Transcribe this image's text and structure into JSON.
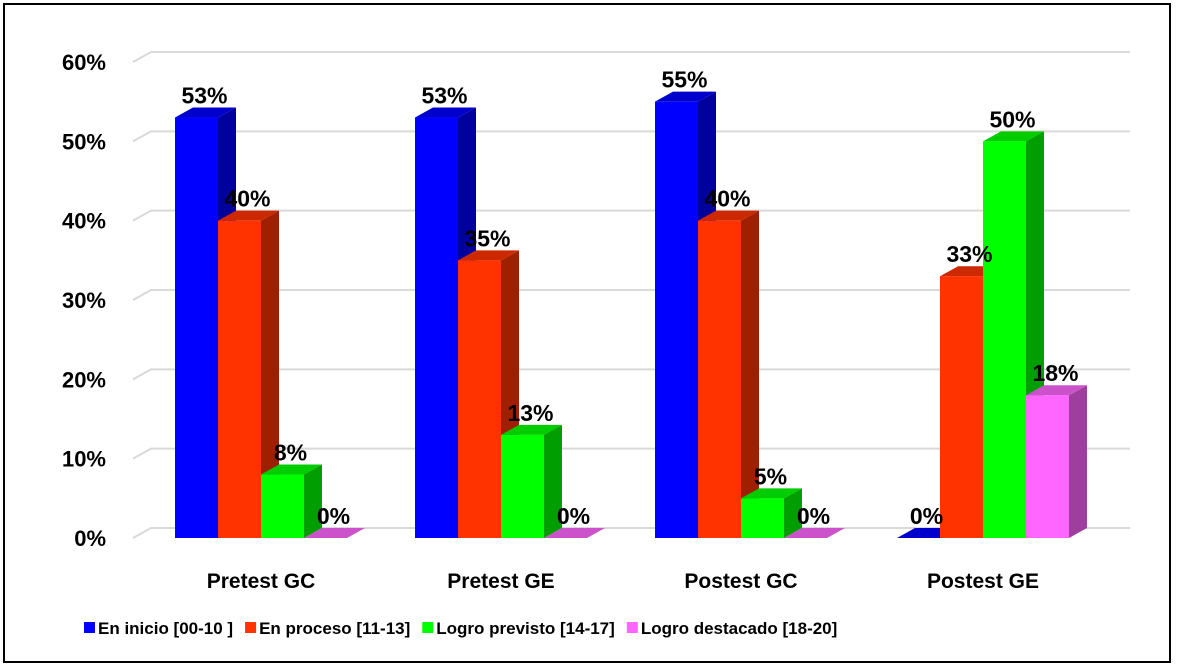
{
  "chart_data": {
    "type": "bar",
    "title": "",
    "xlabel": "",
    "ylabel": "",
    "ylim": [
      0,
      60
    ],
    "yticks": [
      "0%",
      "10%",
      "20%",
      "30%",
      "40%",
      "50%",
      "60%"
    ],
    "grid": true,
    "legend_position": "bottom",
    "categories": [
      "Pretest GC",
      "Pretest GE",
      "Postest GC",
      "Postest GE"
    ],
    "series": [
      {
        "name": "En inicio [00-10 ]",
        "color": "#0000ff",
        "values": [
          53,
          53,
          55,
          0
        ],
        "labels": [
          "53%",
          "53%",
          "55%",
          "0%"
        ]
      },
      {
        "name": "En proceso [11-13]",
        "color": "#ff3300",
        "values": [
          40,
          35,
          40,
          33
        ],
        "labels": [
          "40%",
          "35%",
          "40%",
          "33%"
        ]
      },
      {
        "name": "Logro previsto [14-17]",
        "color": "#00ff00",
        "values": [
          8,
          13,
          5,
          50
        ],
        "labels": [
          "8%",
          "13%",
          "5%",
          "50%"
        ]
      },
      {
        "name": "Logro destacado [18-20]",
        "color": "#ff66ff",
        "values": [
          0,
          0,
          0,
          18
        ],
        "labels": [
          "0%",
          "0%",
          "0%",
          "18%"
        ]
      }
    ]
  }
}
